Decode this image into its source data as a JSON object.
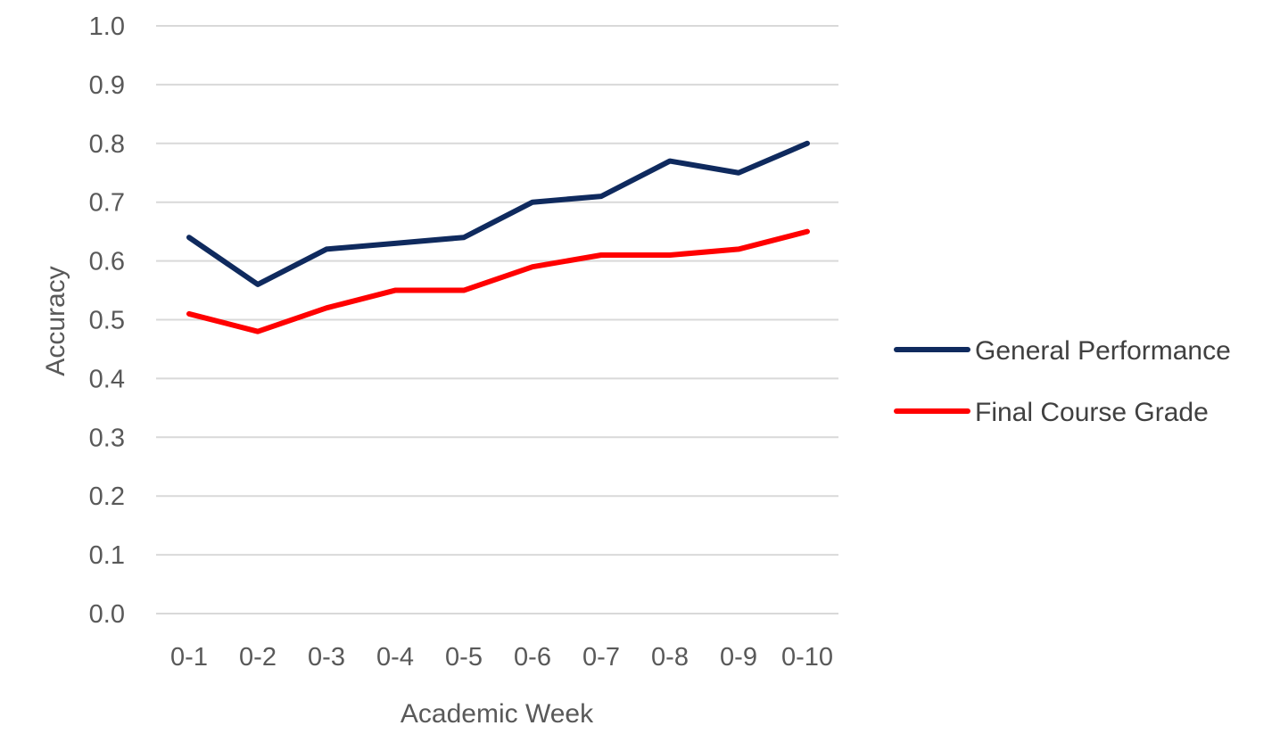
{
  "chart_data": {
    "type": "line",
    "title": "",
    "xlabel": "Academic Week",
    "ylabel": "Accuracy",
    "ylim": [
      0.0,
      1.0
    ],
    "yticks": [
      "0.0",
      "0.1",
      "0.2",
      "0.3",
      "0.4",
      "0.5",
      "0.6",
      "0.7",
      "0.8",
      "0.9",
      "1.0"
    ],
    "categories": [
      "0-1",
      "0-2",
      "0-3",
      "0-4",
      "0-5",
      "0-6",
      "0-7",
      "0-8",
      "0-9",
      "0-10"
    ],
    "grid": "horizontal",
    "legend_position": "right",
    "series": [
      {
        "name": "General Performance",
        "color": "#0f2a5e",
        "values": [
          0.64,
          0.56,
          0.62,
          0.63,
          0.64,
          0.7,
          0.71,
          0.77,
          0.75,
          0.8
        ]
      },
      {
        "name": "Final Course Grade",
        "color": "#ff0000",
        "values": [
          0.51,
          0.48,
          0.52,
          0.55,
          0.55,
          0.59,
          0.61,
          0.61,
          0.62,
          0.65
        ]
      }
    ]
  }
}
